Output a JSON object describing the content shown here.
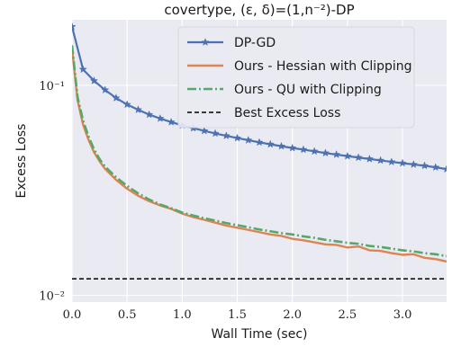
{
  "chart_data": {
    "type": "line",
    "title": "covertype, (ε, δ)=(1,n⁻²)-DP",
    "xlabel": "Wall Time (sec)",
    "ylabel": "Excess Loss",
    "xlim": [
      0.0,
      3.4
    ],
    "ylim": [
      0.0093,
      0.205
    ],
    "yscale": "log",
    "grid": true,
    "legend_position": "top-right",
    "x_ticks": [
      "0.0",
      "0.5",
      "1.0",
      "1.5",
      "2.0",
      "2.5",
      "3.0"
    ],
    "y_ticks": [
      {
        "value": 0.1,
        "label": "10⁻¹"
      },
      {
        "value": 0.01,
        "label": "10⁻²"
      }
    ],
    "colors": {
      "background": "#eaeaf2",
      "grid": "#ffffff",
      "dp_gd": "#4c72b0",
      "hessian": "#dd8452",
      "qu": "#55a868",
      "best": "#000000"
    },
    "series": [
      {
        "name": "DP-GD",
        "color": "#4c72b0",
        "style": "solid-star",
        "x": [
          0.0,
          0.1,
          0.2,
          0.3,
          0.4,
          0.5,
          0.6,
          0.7,
          0.8,
          0.9,
          1.0,
          1.1,
          1.2,
          1.3,
          1.4,
          1.5,
          1.6,
          1.7,
          1.8,
          1.9,
          2.0,
          2.1,
          2.2,
          2.3,
          2.4,
          2.5,
          2.6,
          2.7,
          2.8,
          2.9,
          3.0,
          3.1,
          3.2,
          3.3,
          3.4
        ],
        "y": [
          0.19,
          0.119,
          0.105,
          0.095,
          0.087,
          0.081,
          0.0765,
          0.0725,
          0.0695,
          0.0668,
          0.0645,
          0.0625,
          0.0607,
          0.059,
          0.0575,
          0.0561,
          0.0548,
          0.0535,
          0.0524,
          0.0513,
          0.0503,
          0.0494,
          0.0485,
          0.0476,
          0.0468,
          0.046,
          0.0453,
          0.0446,
          0.0439,
          0.0432,
          0.0426,
          0.042,
          0.0414,
          0.0407,
          0.0399
        ]
      },
      {
        "name": "Ours - Hessian with Clipping",
        "color": "#dd8452",
        "style": "solid",
        "x": [
          0.0,
          0.05,
          0.1,
          0.15,
          0.2,
          0.25,
          0.3,
          0.4,
          0.5,
          0.6,
          0.7,
          0.8,
          0.9,
          1.0,
          1.1,
          1.2,
          1.3,
          1.4,
          1.5,
          1.6,
          1.7,
          1.8,
          1.9,
          2.0,
          2.1,
          2.2,
          2.3,
          2.4,
          2.5,
          2.6,
          2.7,
          2.8,
          2.9,
          3.0,
          3.1,
          3.2,
          3.3,
          3.4
        ],
        "y": [
          0.15,
          0.085,
          0.065,
          0.055,
          0.048,
          0.0435,
          0.04,
          0.0355,
          0.0322,
          0.0298,
          0.0281,
          0.0268,
          0.0258,
          0.0245,
          0.0236,
          0.0229,
          0.0222,
          0.0215,
          0.021,
          0.0205,
          0.02,
          0.0195,
          0.0192,
          0.0186,
          0.0183,
          0.0179,
          0.0175,
          0.0174,
          0.0169,
          0.0171,
          0.0164,
          0.0163,
          0.0159,
          0.0156,
          0.0157,
          0.0151,
          0.0149,
          0.0145
        ]
      },
      {
        "name": "Ours - QU with Clipping",
        "color": "#55a868",
        "style": "dashdot",
        "x": [
          0.0,
          0.05,
          0.1,
          0.15,
          0.2,
          0.25,
          0.3,
          0.4,
          0.5,
          0.6,
          0.7,
          0.8,
          0.9,
          1.0,
          1.1,
          1.2,
          1.3,
          1.4,
          1.5,
          1.6,
          1.7,
          1.8,
          1.9,
          2.0,
          2.1,
          2.2,
          2.3,
          2.4,
          2.5,
          2.6,
          2.7,
          2.8,
          2.9,
          3.0,
          3.1,
          3.2,
          3.3,
          3.4
        ],
        "y": [
          0.155,
          0.088,
          0.068,
          0.057,
          0.0495,
          0.0445,
          0.041,
          0.0365,
          0.0332,
          0.0306,
          0.0286,
          0.0271,
          0.026,
          0.0248,
          0.024,
          0.0233,
          0.0227,
          0.0221,
          0.0216,
          0.0211,
          0.0206,
          0.0202,
          0.0198,
          0.0195,
          0.0191,
          0.0188,
          0.0184,
          0.0181,
          0.0178,
          0.0176,
          0.0172,
          0.017,
          0.0167,
          0.0164,
          0.0162,
          0.0159,
          0.0157,
          0.0154
        ]
      },
      {
        "name": "Best Excess Loss",
        "color": "#000000",
        "style": "dashed",
        "x": [
          0.0,
          3.4
        ],
        "y": [
          0.012,
          0.012
        ]
      }
    ]
  }
}
